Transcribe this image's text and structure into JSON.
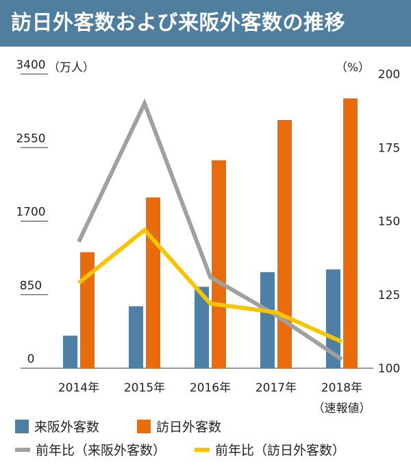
{
  "title": "訪日外客数および来阪外客数の推移",
  "chart_data": {
    "type": "bar",
    "categories": [
      "2014年",
      "2015年",
      "2016年",
      "2017年",
      "2018年"
    ],
    "category_notes": [
      "",
      "",
      "",
      "",
      "（速報値）"
    ],
    "left_axis": {
      "unit": "（万人）",
      "ticks": [
        0,
        850,
        1700,
        2550,
        3400
      ],
      "ylim": [
        0,
        3400
      ]
    },
    "right_axis": {
      "unit": "（%）",
      "ticks": [
        100,
        125,
        150,
        175,
        200
      ],
      "ylim": [
        100,
        200
      ]
    },
    "bar_series": [
      {
        "name": "来阪外客数",
        "color": "#4e7fa5",
        "values": [
          376,
          716,
          941,
          1111,
          1142
        ]
      },
      {
        "name": "訪日外客数",
        "color": "#e86c0c",
        "values": [
          1341,
          1974,
          2404,
          2869,
          3119
        ]
      }
    ],
    "line_series": [
      {
        "name": "前年比（来阪外客数）",
        "color": "#a0a0a0",
        "values": [
          143,
          190,
          131,
          118,
          103
        ]
      },
      {
        "name": "前年比（訪日外客数）",
        "color": "#f6c500",
        "values": [
          129,
          147,
          122,
          119,
          109
        ]
      }
    ],
    "grid": false,
    "legend_position": "bottom"
  }
}
